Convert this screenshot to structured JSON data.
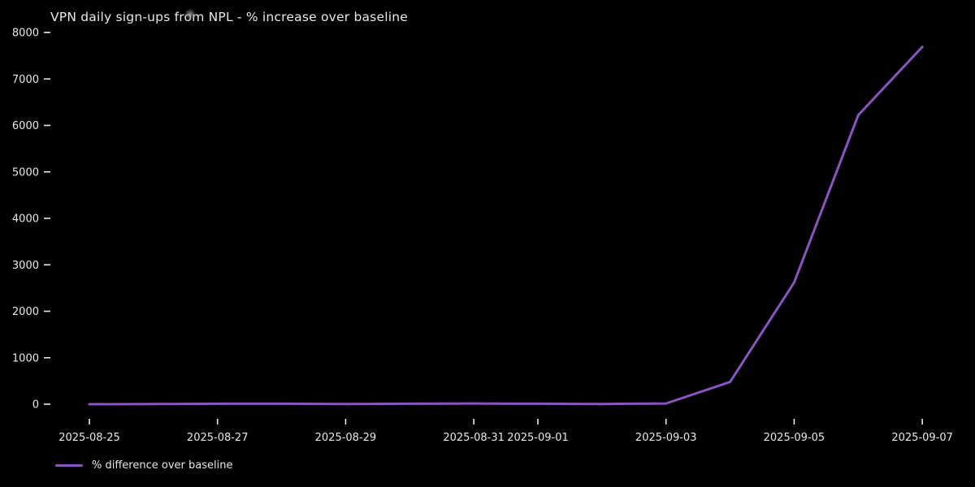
{
  "title": "VPN daily sign-ups from NPL - % increase over baseline",
  "legend": {
    "label": "% difference over baseline"
  },
  "colors": {
    "background": "#000000",
    "text": "#e8e8e6",
    "line": "#8a55c0"
  },
  "chart_data": {
    "type": "line",
    "title": "VPN daily sign-ups from NPL - % increase over baseline",
    "x": [
      "2025-08-25",
      "2025-08-26",
      "2025-08-27",
      "2025-08-28",
      "2025-08-29",
      "2025-08-30",
      "2025-08-31",
      "2025-09-01",
      "2025-09-02",
      "2025-09-03",
      "2025-09-04",
      "2025-09-05",
      "2025-09-06",
      "2025-09-07"
    ],
    "series": [
      {
        "name": "% difference over baseline",
        "values": [
          0,
          5,
          10,
          10,
          5,
          10,
          15,
          10,
          5,
          15,
          480,
          2620,
          6220,
          7690
        ]
      }
    ],
    "xlabel": "",
    "ylabel": "",
    "ylim": [
      0,
      8000
    ],
    "y_ticks": [
      "0",
      "1000",
      "2000",
      "3000",
      "4000",
      "5000",
      "6000",
      "7000",
      "8000"
    ],
    "x_ticks": [
      {
        "index": 0,
        "label": "2025-08-25"
      },
      {
        "index": 2,
        "label": "2025-08-27"
      },
      {
        "index": 4,
        "label": "2025-08-29"
      },
      {
        "index": 6,
        "label": "2025-08-31"
      },
      {
        "index": 7,
        "label": "2025-09-01"
      },
      {
        "index": 9,
        "label": "2025-09-03"
      },
      {
        "index": 11,
        "label": "2025-09-05"
      },
      {
        "index": 13,
        "label": "2025-09-07"
      }
    ],
    "grid": false,
    "legend_position": "bottom-left"
  }
}
